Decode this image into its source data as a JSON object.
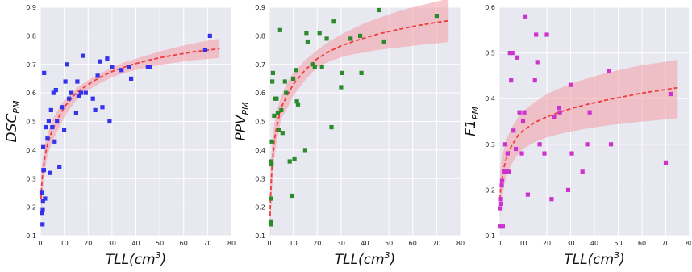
{
  "colors": {
    "plot_background": "#e8e8f1",
    "grid": "#ffffff",
    "fit_line": "#ef3b3b",
    "confidence_band": "#f4a3ad"
  },
  "chart_data": [
    {
      "type": "scatter",
      "xlabel": "TLL(cm³)",
      "ylabel": "DSC_PM",
      "xlim": [
        0,
        80
      ],
      "ylim": [
        0.1,
        0.9
      ],
      "xticks": [
        0,
        10,
        20,
        30,
        40,
        50,
        60,
        70,
        80
      ],
      "xtick_labels": [
        "0",
        "10",
        "20",
        "30",
        "40",
        "50",
        "60",
        "70",
        "80"
      ],
      "yticks": [
        0.1,
        0.2,
        0.3,
        0.4,
        0.5,
        0.6,
        0.7,
        0.8,
        0.9
      ],
      "ytick_labels": [
        "0.1",
        "0.2",
        "0.3",
        "0.4",
        "0.5",
        "0.6",
        "0.7",
        "0.8",
        "0.9"
      ],
      "grid": true,
      "marker_color": "#3333ee",
      "points": {
        "x": [
          0.5,
          0.8,
          0.9,
          1.0,
          1.1,
          1.2,
          1.3,
          1.5,
          1.6,
          2.0,
          2.5,
          3.0,
          3.5,
          4.0,
          4.5,
          5.0,
          5.5,
          6.0,
          6.5,
          7.0,
          8.0,
          9.0,
          10.0,
          10.5,
          11.0,
          12.0,
          13.0,
          15.0,
          15.5,
          16.0,
          17.0,
          18.0,
          19.0,
          22.0,
          23.0,
          24.0,
          25.0,
          26.0,
          28.0,
          29.0,
          30.0,
          34.0,
          37.0,
          38.0,
          45.0,
          46.0,
          69.0,
          71.0
        ],
        "y": [
          0.25,
          0.18,
          0.14,
          0.19,
          0.22,
          0.41,
          0.33,
          0.33,
          0.67,
          0.23,
          0.48,
          0.44,
          0.5,
          0.32,
          0.54,
          0.48,
          0.6,
          0.43,
          0.61,
          0.5,
          0.34,
          0.55,
          0.47,
          0.64,
          0.7,
          0.58,
          0.6,
          0.53,
          0.64,
          0.59,
          0.6,
          0.73,
          0.6,
          0.58,
          0.54,
          0.66,
          0.71,
          0.55,
          0.72,
          0.5,
          0.69,
          0.68,
          0.69,
          0.65,
          0.69,
          0.69,
          0.75,
          0.8
        ]
      },
      "fit": {
        "x": [
          0.3,
          0.5,
          1,
          2,
          3,
          5,
          8,
          10,
          15,
          20,
          25,
          30,
          35,
          40,
          45,
          50,
          55,
          60,
          65,
          70,
          75
        ],
        "y": [
          0.23,
          0.27,
          0.32,
          0.38,
          0.42,
          0.47,
          0.52,
          0.55,
          0.6,
          0.63,
          0.655,
          0.675,
          0.69,
          0.703,
          0.714,
          0.723,
          0.731,
          0.738,
          0.745,
          0.75,
          0.755
        ],
        "upper": [
          0.3,
          0.33,
          0.37,
          0.42,
          0.455,
          0.505,
          0.55,
          0.575,
          0.615,
          0.645,
          0.668,
          0.69,
          0.707,
          0.72,
          0.733,
          0.745,
          0.756,
          0.766,
          0.775,
          0.783,
          0.79
        ],
        "lower": [
          0.16,
          0.2,
          0.26,
          0.33,
          0.38,
          0.43,
          0.48,
          0.515,
          0.575,
          0.61,
          0.635,
          0.655,
          0.67,
          0.68,
          0.69,
          0.698,
          0.704,
          0.71,
          0.715,
          0.719,
          0.722
        ]
      }
    },
    {
      "type": "scatter",
      "xlabel": "TLL(cm³)",
      "ylabel": "PPV_PM",
      "xlim": [
        0,
        80
      ],
      "ylim": [
        0.1,
        0.9
      ],
      "xticks": [
        0,
        10,
        20,
        30,
        40,
        50,
        60,
        70,
        80
      ],
      "xtick_labels": [
        "0",
        "10",
        "20",
        "30",
        "40",
        "50",
        "60",
        "70",
        "80"
      ],
      "yticks": [
        0.1,
        0.2,
        0.3,
        0.4,
        0.5,
        0.6,
        0.7,
        0.8,
        0.9
      ],
      "ytick_labels": [
        "0.1",
        "0.2",
        "0.3",
        "0.4",
        "0.5",
        "0.6",
        "0.7",
        "0.8",
        "0.9"
      ],
      "grid": true,
      "marker_color": "#2c8a2c",
      "points": {
        "x": [
          0.5,
          0.6,
          0.7,
          0.8,
          0.9,
          1.0,
          1.2,
          1.5,
          2.0,
          2.5,
          3.0,
          3.5,
          4.0,
          4.5,
          5.0,
          5.5,
          6.5,
          7.0,
          8.5,
          9.5,
          10.0,
          10.5,
          11.0,
          11.5,
          12.0,
          15.0,
          15.5,
          16.0,
          18.0,
          19.0,
          21.0,
          22.0,
          24.0,
          26.0,
          27.0,
          30.0,
          30.5,
          34.0,
          38.0,
          38.5,
          46.0,
          48.0,
          70.0
        ],
        "y": [
          0.15,
          0.14,
          0.23,
          0.36,
          0.35,
          0.43,
          0.64,
          0.67,
          0.52,
          0.58,
          0.58,
          0.53,
          0.47,
          0.82,
          0.54,
          0.46,
          0.64,
          0.6,
          0.36,
          0.24,
          0.65,
          0.37,
          0.68,
          0.57,
          0.56,
          0.4,
          0.81,
          0.78,
          0.7,
          0.69,
          0.81,
          0.69,
          0.79,
          0.48,
          0.85,
          0.62,
          0.67,
          0.79,
          0.8,
          0.67,
          0.89,
          0.78,
          0.87
        ]
      },
      "fit": {
        "x": [
          0.3,
          0.5,
          1,
          2,
          3,
          5,
          8,
          10,
          15,
          20,
          25,
          30,
          35,
          40,
          45,
          50,
          55,
          60,
          65,
          70,
          75
        ],
        "y": [
          0.17,
          0.24,
          0.33,
          0.43,
          0.48,
          0.55,
          0.6,
          0.63,
          0.68,
          0.72,
          0.745,
          0.765,
          0.78,
          0.793,
          0.805,
          0.815,
          0.824,
          0.833,
          0.84,
          0.847,
          0.853
        ],
        "upper": [
          0.28,
          0.33,
          0.41,
          0.49,
          0.535,
          0.59,
          0.645,
          0.67,
          0.715,
          0.75,
          0.78,
          0.805,
          0.825,
          0.845,
          0.86,
          0.875,
          0.888,
          0.9,
          0.91,
          0.92,
          0.93
        ],
        "lower": [
          0.06,
          0.15,
          0.25,
          0.37,
          0.425,
          0.51,
          0.555,
          0.59,
          0.645,
          0.69,
          0.71,
          0.725,
          0.735,
          0.742,
          0.75,
          0.755,
          0.76,
          0.765,
          0.77,
          0.774,
          0.778
        ]
      }
    },
    {
      "type": "scatter",
      "xlabel": "TLL(cm³)",
      "ylabel": "F1_PM",
      "xlim": [
        0,
        80
      ],
      "ylim": [
        0.1,
        0.6
      ],
      "xticks": [
        0,
        10,
        20,
        30,
        40,
        50,
        60,
        70,
        80
      ],
      "xtick_labels": [
        "0",
        "10",
        "20",
        "30",
        "40",
        "50",
        "60",
        "70",
        "80"
      ],
      "yticks": [
        0.1,
        0.2,
        0.3,
        0.4,
        0.5,
        0.6
      ],
      "ytick_labels": [
        "0.1",
        "0.2",
        "0.3",
        "0.4",
        "0.5",
        "0.6"
      ],
      "grid": true,
      "marker_color": "#cc33cc",
      "points": {
        "x": [
          0.3,
          0.5,
          0.7,
          0.8,
          1.0,
          1.2,
          1.5,
          2.0,
          2.5,
          3.0,
          3.5,
          4.0,
          4.5,
          5.0,
          5.5,
          6.0,
          7.0,
          7.5,
          8.5,
          9.5,
          10.0,
          10.5,
          11.0,
          12.0,
          15.0,
          15.5,
          16.0,
          17.0,
          19.0,
          20.0,
          22.0,
          23.0,
          25.0,
          25.5,
          29.0,
          30.0,
          30.5,
          35.0,
          37.0,
          38.0,
          46.0,
          47.0,
          70.0,
          72.0
        ],
        "y": [
          0.12,
          0.16,
          0.18,
          0.17,
          0.21,
          0.22,
          0.12,
          0.24,
          0.3,
          0.24,
          0.28,
          0.24,
          0.5,
          0.44,
          0.5,
          0.33,
          0.29,
          0.49,
          0.37,
          0.28,
          0.35,
          0.37,
          0.58,
          0.19,
          0.44,
          0.54,
          0.48,
          0.3,
          0.28,
          0.54,
          0.18,
          0.36,
          0.38,
          0.37,
          0.2,
          0.43,
          0.28,
          0.24,
          0.3,
          0.37,
          0.46,
          0.3,
          0.26,
          0.41
        ]
      },
      "fit": {
        "x": [
          0.3,
          0.5,
          1,
          2,
          3,
          5,
          8,
          10,
          15,
          20,
          25,
          30,
          35,
          40,
          45,
          50,
          55,
          60,
          65,
          70,
          75
        ],
        "y": [
          0.18,
          0.2,
          0.22,
          0.25,
          0.27,
          0.295,
          0.32,
          0.33,
          0.348,
          0.36,
          0.37,
          0.378,
          0.385,
          0.391,
          0.397,
          0.402,
          0.407,
          0.412,
          0.416,
          0.42,
          0.424
        ],
        "upper": [
          0.24,
          0.25,
          0.27,
          0.29,
          0.31,
          0.335,
          0.36,
          0.372,
          0.393,
          0.41,
          0.422,
          0.432,
          0.441,
          0.449,
          0.456,
          0.462,
          0.468,
          0.473,
          0.477,
          0.481,
          0.485
        ],
        "lower": [
          0.12,
          0.15,
          0.17,
          0.21,
          0.23,
          0.255,
          0.28,
          0.29,
          0.305,
          0.315,
          0.322,
          0.328,
          0.333,
          0.337,
          0.341,
          0.344,
          0.347,
          0.35,
          0.352,
          0.355,
          0.357
        ]
      }
    }
  ]
}
